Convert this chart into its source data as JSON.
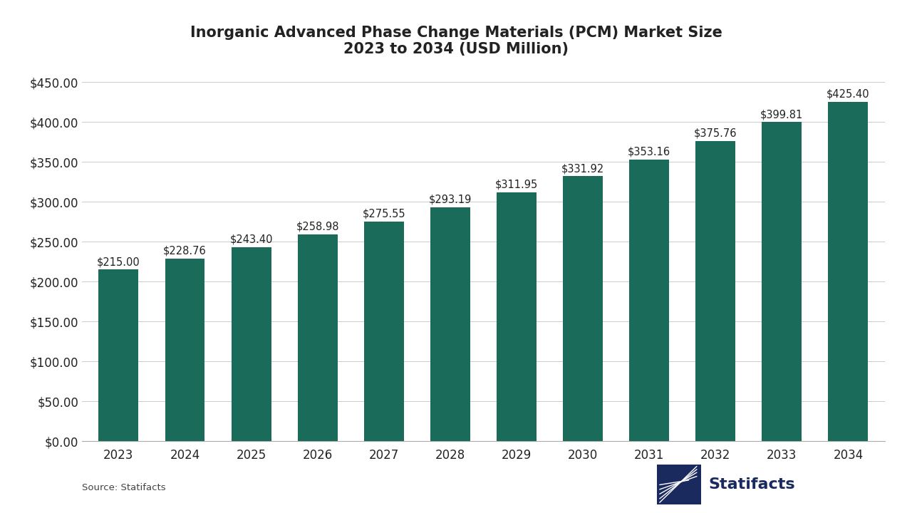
{
  "title": "Inorganic Advanced Phase Change Materials (PCM) Market Size\n2023 to 2034 (USD Million)",
  "years": [
    2023,
    2024,
    2025,
    2026,
    2027,
    2028,
    2029,
    2030,
    2031,
    2032,
    2033,
    2034
  ],
  "values": [
    215.0,
    228.76,
    243.4,
    258.98,
    275.55,
    293.19,
    311.95,
    331.92,
    353.16,
    375.76,
    399.81,
    425.4
  ],
  "bar_color": "#1a6b5a",
  "bar_width": 0.6,
  "ylim": [
    0,
    450
  ],
  "yticks": [
    0,
    50,
    100,
    150,
    200,
    250,
    300,
    350,
    400,
    450
  ],
  "ytick_labels": [
    "$0.00",
    "$50.00",
    "$100.00",
    "$150.00",
    "$200.00",
    "$250.00",
    "$300.00",
    "$350.00",
    "$400.00",
    "$450.00"
  ],
  "background_color": "#ffffff",
  "grid_color": "#cccccc",
  "title_fontsize": 15,
  "tick_fontsize": 12,
  "label_fontsize": 10.5,
  "source_text": "Source: Statifacts",
  "statifacts_text": "Statifacts",
  "logo_color": "#1a2a5e",
  "text_color": "#222222"
}
